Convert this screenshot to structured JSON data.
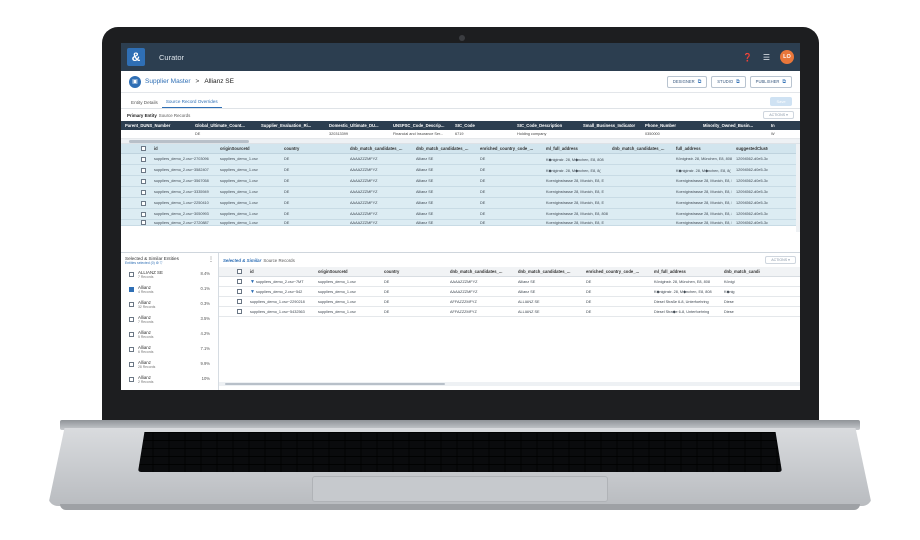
{
  "app": {
    "logo": "&",
    "title": "Curator",
    "user_initials": "LO",
    "help_icon": "question-circle-icon",
    "menu_icon": "grid-menu-icon"
  },
  "header": {
    "breadcrumb_root": "Supplier Master",
    "separator": ">",
    "breadcrumb_current": "Allianz SE",
    "buttons": [
      {
        "label": "DESIGNER"
      },
      {
        "label": "STUDIO"
      },
      {
        "label": "PUBLISHER"
      }
    ]
  },
  "tabs": [
    {
      "label": "Entity Details"
    },
    {
      "label": "Source Record Overrides"
    }
  ],
  "save_label": "Save",
  "primary": {
    "label_bold": "Primary Entity",
    "label_rest": "Source Records",
    "actions_label": "ACTIONS",
    "columns": [
      "Parent_DUNS_Number",
      "Global_Ultimate_Count...",
      "Supplier_Evaluation_Ri...",
      "Domestic_Ultimate_DU...",
      "UNSPSC_Code_Descrip...",
      "SIC_Code",
      "SIC_Code_Description",
      "Small_Business_Indicator",
      "Phone_Number",
      "Minority_Owned_Busin...",
      "In"
    ],
    "row": [
      "",
      "DE",
      "",
      "320313399",
      "Financial and Insurance Ser...",
      "6719",
      "Holding company",
      "",
      "0350000",
      "",
      "W"
    ]
  },
  "source_grid": {
    "columns": [
      "id",
      "originSourceId",
      "country",
      "dnb_match_candidates_...",
      "dnb_match_candidates_...",
      "enriched_country_code_...",
      "ml_full_address",
      "dnb_match_candidates_...",
      "full_address",
      "suggestedClusterIds"
    ],
    "rows": [
      [
        "suppliers_demo_2.csv~2703096",
        "suppliers_demo_1.csv",
        "DE",
        "AAAAZZZMFYZ",
        "Allianz SE",
        "DE",
        "K◆niginstr. 28, M◆nchen, E8, 808",
        "",
        "Königinstr. 28, München, E8, 808",
        "12094562-d0e5-3c8"
      ],
      [
        "suppliers_demo_2.csv~3582407",
        "suppliers_demo_1.csv",
        "DE",
        "AAAAZZZMFYZ",
        "Allianz SE",
        "DE",
        "K◆niginstr. 28, M◆nchen, E8, 8(",
        "",
        "K◆niginstr. 28, M◆nchen, E8, 8(",
        "12094562-d0e5-3c8"
      ],
      [
        "suppliers_demo_2.csv~3567058",
        "suppliers_demo_1.csv",
        "DE",
        "AAAAZZZMFYZ",
        "Allianz SE",
        "DE",
        "Koeniginstrasse 28, Munich, E8, E",
        "",
        "Koeniginstrasse 28, Munich, E8, E",
        "12094562-d0e5-3c8"
      ],
      [
        "suppliers_demo_2.csv~3335949",
        "suppliers_demo_1.csv",
        "DE",
        "AAAAZZZMFYZ",
        "Allianz SE",
        "DE",
        "Koeniginstrasse 28, Munich, E8, E",
        "",
        "Koeniginstrasse 28, Munich, E8, E",
        "12094562-d0e5-3c8"
      ],
      [
        "suppliers_demo_1.csv~2250410",
        "suppliers_demo_1.csv",
        "DE",
        "AAAAZZZMFYZ",
        "Allianz SE",
        "DE",
        "Koeniginstrasse 28, Munich, E8, E",
        "",
        "Koeniginstrasse 28, Munich, E8, E",
        "12094562-d0e5-3c8"
      ],
      [
        "suppliers_demo_2.csv~3050993",
        "suppliers_demo_1.csv",
        "DE",
        "AAAAZZZMFYZ",
        "Allianz SE",
        "DE",
        "Koeniginstrasse 28, Munich, E8, 80802, DE",
        "",
        "Koeniginstrasse 28, Munich, E8, 80802, DE",
        "12094562-d0e5-3c8"
      ],
      [
        "suppliers_demo_2.csv~2720887",
        "suppliers_demo_1.csv",
        "DE",
        "AAAAZZZMFYZ",
        "Allianz SE",
        "DE",
        "Koeniginstrasse 28, Munich, E8, E",
        "",
        "Koeniginstrasse 28, Munich, E8, E",
        "12094562-d0e5-3c8"
      ]
    ]
  },
  "left_panel": {
    "title": "Selected & Similar Entities",
    "subtitle": "Entities selected (0) ⚙ ▽",
    "items": [
      {
        "name": "ALLIANZ SE",
        "count": "7 Records",
        "pct": "8.4%",
        "checked": false
      },
      {
        "name": "Allianz",
        "count": "4 Records",
        "pct": "0.1%",
        "checked": true
      },
      {
        "name": "Allianz",
        "count": "32 Records",
        "pct": "0.3%",
        "checked": false
      },
      {
        "name": "Allianz",
        "count": "7 Records",
        "pct": "3.5%",
        "checked": false
      },
      {
        "name": "Allianz",
        "count": "5 Records",
        "pct": "4.2%",
        "checked": false
      },
      {
        "name": "Allianz",
        "count": "6 Records",
        "pct": "7.1%",
        "checked": false
      },
      {
        "name": "Allianz",
        "count": "28 Records",
        "pct": "9.9%",
        "checked": false
      },
      {
        "name": "Allianz",
        "count": "2 Records",
        "pct": "10%",
        "checked": false
      }
    ]
  },
  "similar": {
    "label_bold": "Selected & Similar",
    "label_rest": "Source Records",
    "actions_label": "ACTIONS",
    "columns": [
      "id",
      "originSourceId",
      "country",
      "dnb_match_candidates_...",
      "dnb_match_candidates_...",
      "enriched_country_code_...",
      "ml_full_address",
      "dnb_match_candidates_..."
    ],
    "rows": [
      [
        "suppliers_demo_2.csv~7MT",
        "suppliers_demo_1.csv",
        "DE",
        "AAAAZZZMFYZ",
        "Allianz SE",
        "DE",
        "Königinstr. 28, München, E8, 808",
        "Königi"
      ],
      [
        "suppliers_demo_2.csv~542",
        "suppliers_demo_1.csv",
        "DE",
        "AAAAZZZMFYZ",
        "Allianz SE",
        "DE",
        "K◆niginstr. 28, M◆nchen, E8, 808",
        "K◆nig"
      ],
      [
        "suppliers_demo_1.csv~2290218",
        "suppliers_demo_1.csv",
        "DE",
        "AFFAZZZMFYZ",
        "ALLIANZ SE",
        "DE",
        "Diesel Straße 6-8, Unterfoehring",
        "Diese"
      ],
      [
        "suppliers_demo_1.csv~5432563",
        "suppliers_demo_1.csv",
        "DE",
        "AFFAZZZMFYZ",
        "ALLIANZ SE",
        "DE",
        "Diesel Stra◆e 6-8, Unterfoehring",
        "Diese"
      ]
    ]
  }
}
